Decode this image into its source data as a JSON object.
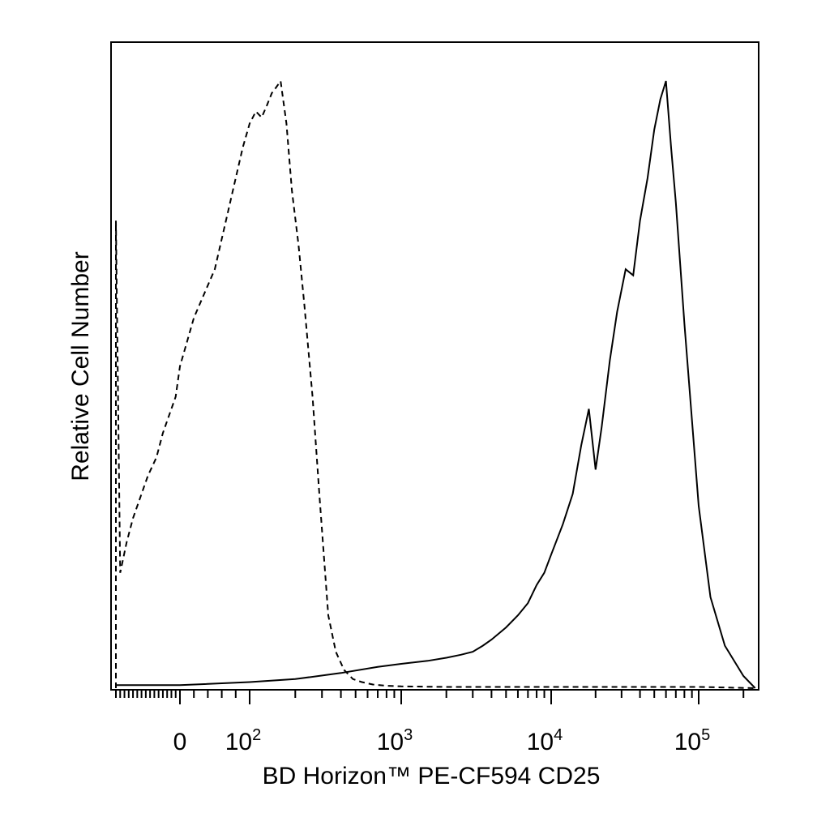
{
  "chart_data": {
    "type": "line",
    "title": "",
    "xlabel": "BD Horizon™ PE-CF594 CD25",
    "ylabel": "Relative Cell Number",
    "x_scale": "biexponential (linear near 0, log above 10^2)",
    "xlim": [
      -300,
      250000
    ],
    "ylim": [
      0,
      100
    ],
    "x_ticks": [
      {
        "value": 0,
        "label": "0",
        "sup": ""
      },
      {
        "value": 100,
        "label": "10",
        "sup": "2"
      },
      {
        "value": 1000,
        "label": "10",
        "sup": "3"
      },
      {
        "value": 10000,
        "label": "10",
        "sup": "4"
      },
      {
        "value": 100000,
        "label": "10",
        "sup": "5"
      }
    ],
    "grid": false,
    "legend": "none",
    "series": [
      {
        "style": "dashed",
        "x": [
          -300,
          -300,
          -280,
          -250,
          -220,
          -190,
          -150,
          -110,
          -80,
          -50,
          -20,
          0,
          10,
          20,
          35,
          50,
          60,
          70,
          80,
          90,
          100,
          110,
          120,
          130,
          140,
          150,
          160,
          175,
          190,
          210,
          230,
          260,
          290,
          330,
          370,
          420,
          480,
          550,
          650,
          800,
          1000,
          2000,
          5000,
          20000,
          100000,
          240000
        ],
        "y": [
          0,
          77,
          19,
          24,
          28,
          31,
          35,
          38,
          42,
          45,
          48,
          53,
          57,
          61,
          65,
          69,
          74,
          79,
          84,
          89,
          93,
          95,
          94,
          96,
          98,
          99,
          100,
          93,
          82,
          73,
          63,
          48,
          31,
          12,
          6,
          3,
          1.5,
          1,
          0.6,
          0.4,
          0.3,
          0.2,
          0.2,
          0.2,
          0.2,
          0
        ]
      },
      {
        "style": "solid",
        "x": [
          -300,
          0,
          100,
          200,
          400,
          700,
          1000,
          1500,
          2000,
          2500,
          3000,
          3500,
          4000,
          5000,
          6000,
          7000,
          8000,
          9000,
          10000,
          12000,
          14000,
          16000,
          18000,
          20000,
          22000,
          25000,
          28000,
          32000,
          36000,
          40000,
          45000,
          50000,
          55000,
          60000,
          65000,
          70000,
          80000,
          100000,
          120000,
          150000,
          200000,
          240000
        ],
        "y": [
          0.5,
          0.5,
          1,
          1.5,
          2.5,
          3.5,
          4,
          4.5,
          5,
          5.5,
          6,
          7,
          8,
          10,
          12,
          14,
          17,
          19,
          22,
          27,
          32,
          40,
          46,
          36,
          43,
          54,
          62,
          69,
          68,
          77,
          84,
          92,
          97,
          100,
          89,
          80,
          60,
          30,
          15,
          7,
          2,
          0
        ]
      }
    ]
  }
}
